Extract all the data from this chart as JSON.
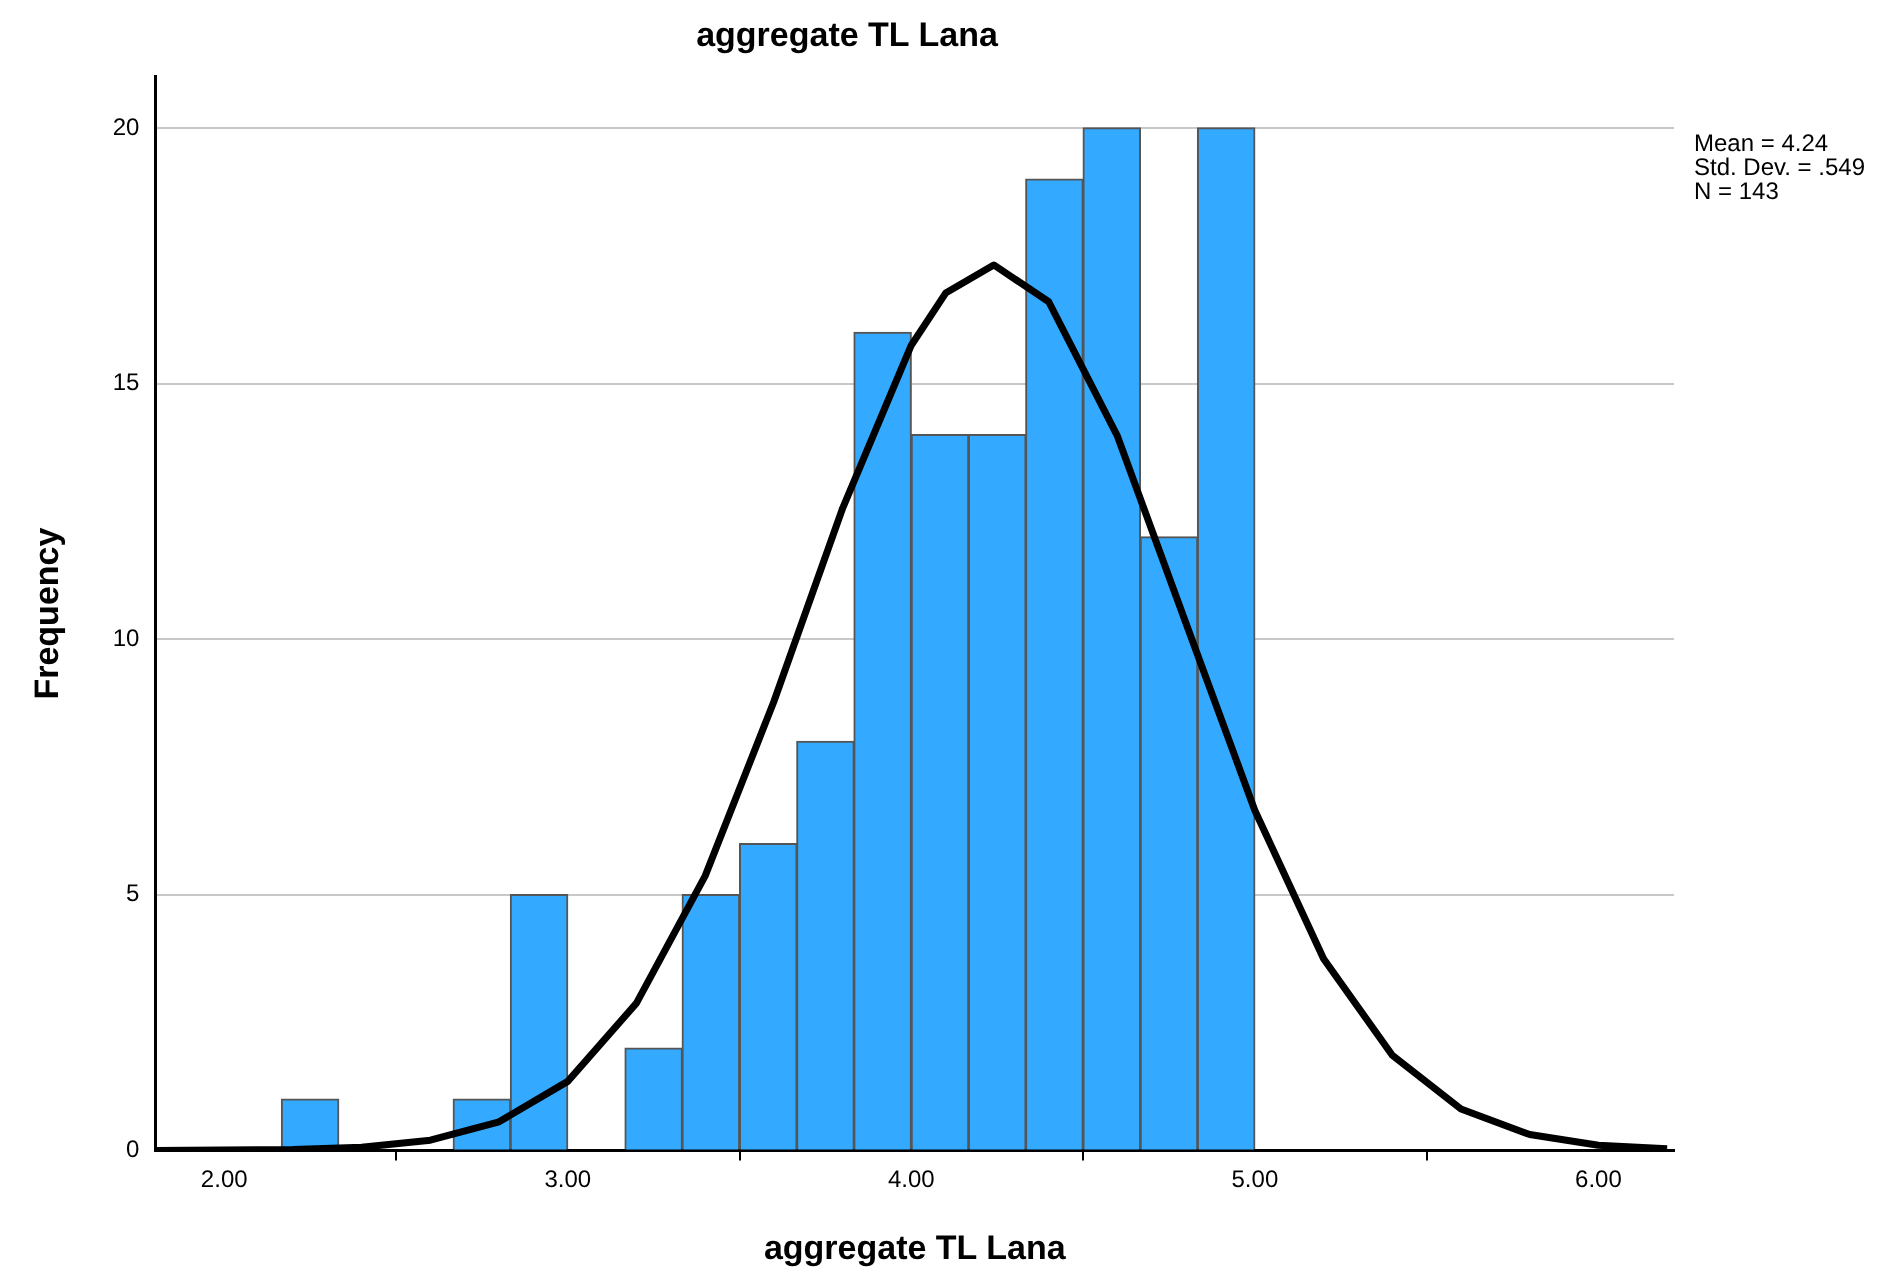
{
  "chart_data": {
    "type": "histogram",
    "title": "aggregate TL Lana",
    "xlabel": "aggregate TL Lana",
    "ylabel": "Frequency",
    "bins": [
      2.167,
      2.333,
      2.5,
      2.667,
      2.833,
      3,
      3.167,
      3.333,
      3.5,
      3.667,
      3.833,
      4,
      4.167,
      4.333,
      4.5,
      4.667,
      4.833,
      5
    ],
    "values": [
      1,
      0,
      0,
      1,
      5,
      0,
      2,
      5,
      6,
      8,
      16,
      14,
      14,
      19,
      20,
      12,
      20
    ],
    "color": "#33aaff",
    "series": [
      {
        "type": "line",
        "color": "#000000",
        "x": [
          1.8,
          2.2,
          2.4,
          2.6,
          2.8,
          3.0,
          3.2,
          3.4,
          3.6,
          3.8,
          4.0,
          4.1,
          4.24,
          4.4,
          4.6,
          4.8,
          5.0,
          5.2,
          5.4,
          5.6,
          5.8,
          6.0,
          6.2
        ],
        "values": [
          0,
          0.02,
          0.06,
          0.2,
          0.56,
          1.35,
          2.88,
          5.37,
          8.78,
          12.56,
          15.75,
          16.77,
          17.32,
          16.6,
          13.97,
          10.3,
          6.65,
          3.75,
          1.86,
          0.81,
          0.31,
          0.1,
          0.03
        ]
      }
    ],
    "xlim": [
      1.8,
      6.22
    ],
    "xticks": [
      {
        "value": 2,
        "label": "2.00"
      },
      {
        "value": 3,
        "label": "3.00"
      },
      {
        "value": 4,
        "label": "4.00"
      },
      {
        "value": 5,
        "label": "5.00"
      },
      {
        "value": 6,
        "label": "6.00"
      }
    ],
    "ylim": [
      0,
      21
    ],
    "yticks": [
      0,
      5,
      10,
      15,
      20
    ],
    "grid": "y",
    "legend": false,
    "marker": "none",
    "line_style": "solid",
    "annotations": [
      "Mean = 4.24",
      "Std. Dev. = .549",
      "N = 143"
    ]
  }
}
